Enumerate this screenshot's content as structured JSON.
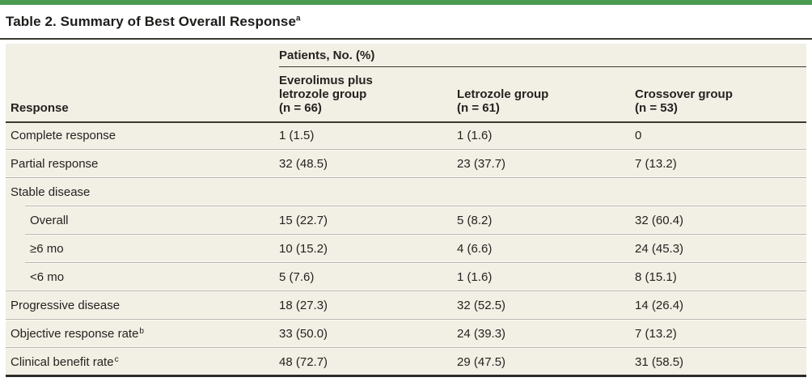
{
  "title": {
    "text": "Table 2. Summary of Best Overall Response",
    "footnote_marker": "a"
  },
  "table": {
    "spanner_header": "Patients, No. (%)",
    "response_header": "Response",
    "group_headers": [
      "Everolimus plus\nletrozole group\n(n = 66)",
      "Letrozole group\n(n = 61)",
      "Crossover group\n(n = 53)"
    ],
    "rows": [
      {
        "label": "Complete response",
        "sup": "",
        "values": [
          "1 (1.5)",
          "1 (1.6)",
          "0"
        ]
      },
      {
        "label": "Partial response",
        "sup": "",
        "values": [
          "32 (48.5)",
          "23 (37.7)",
          "7 (13.2)"
        ]
      },
      {
        "label": "Stable disease",
        "sup": "",
        "values": [
          "",
          "",
          ""
        ]
      },
      {
        "label": "Overall",
        "sup": "",
        "values": [
          "15 (22.7)",
          "5 (8.2)",
          "32 (60.4)"
        ]
      },
      {
        "label": "≥6 mo",
        "sup": "",
        "values": [
          "10 (15.2)",
          "4 (6.6)",
          "24 (45.3)"
        ]
      },
      {
        "label": "<6 mo",
        "sup": "",
        "values": [
          "5 (7.6)",
          "1 (1.6)",
          "8 (15.1)"
        ]
      },
      {
        "label": "Progressive disease",
        "sup": "",
        "values": [
          "18 (27.3)",
          "32 (52.5)",
          "14 (26.4)"
        ]
      },
      {
        "label": "Objective response rate",
        "sup": "b",
        "values": [
          "33 (50.0)",
          "24 (39.3)",
          "7 (13.2)"
        ]
      },
      {
        "label": "Clinical benefit rate",
        "sup": "c",
        "values": [
          "48 (72.7)",
          "29 (47.5)",
          "31 (58.5)"
        ]
      }
    ]
  },
  "colors": {
    "accent-green": "#4a9a51",
    "table-bg": "#f2efe5",
    "rule-dark": "#3b3831",
    "divider-gray": "#b5b1a5",
    "divider-light": "#fbfaf5",
    "text": "#252320",
    "page-bg": "#ffffff"
  }
}
